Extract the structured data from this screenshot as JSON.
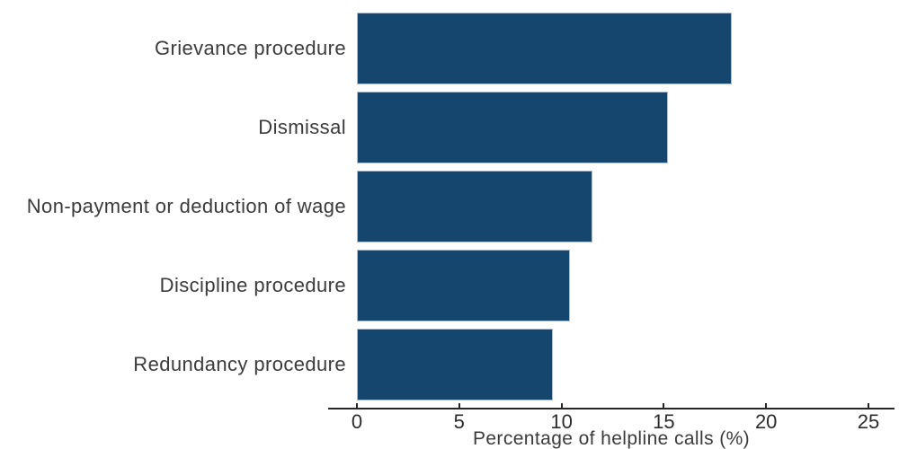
{
  "chart_data": {
    "type": "bar",
    "orientation": "horizontal",
    "title": "",
    "xlabel": "Percentage of helpline calls (%)",
    "ylabel": "",
    "categories": [
      "Grievance procedure",
      "Dismissal",
      "Non-payment or deduction of wage",
      "Discipline procedure",
      "Redundancy procedure"
    ],
    "values": [
      18.3,
      15.2,
      11.5,
      10.4,
      9.6
    ],
    "xticks": [
      0,
      5,
      10,
      15,
      20,
      25
    ],
    "xlim": [
      0,
      25
    ],
    "grid": false,
    "legend": false,
    "bar_color": "#15466E",
    "bar_edge_color": "#AEBFD2",
    "axis_color": "#262626",
    "text_color": "#3B3B3B",
    "background_color": "#FFFFFF"
  }
}
